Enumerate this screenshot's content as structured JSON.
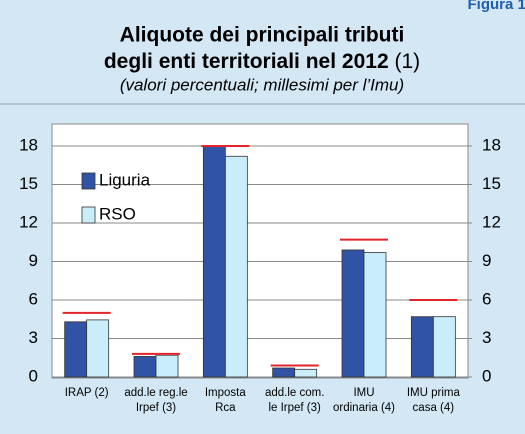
{
  "figure_label": "Figura 1.",
  "chart_data": {
    "type": "bar",
    "title": [
      "Aliquote dei principali tributi",
      "degli enti territoriali nel 2012"
    ],
    "title_note": "(1)",
    "subtitle": "(valori percentuali; millesimi per l’Imu)",
    "categories": [
      [
        "IRAP (2)"
      ],
      [
        "add.le reg.le",
        "Irpef (3)"
      ],
      [
        "Imposta",
        "Rca"
      ],
      [
        "add.le com.",
        "le Irpef (3)"
      ],
      [
        "IMU",
        "ordinaria (4)"
      ],
      [
        "IMU prima",
        "casa (4)"
      ]
    ],
    "series": [
      {
        "name": "Liguria",
        "color": "#3153a6",
        "values": [
          4.3,
          1.6,
          18,
          0.7,
          9.9,
          4.7
        ]
      },
      {
        "name": "RSO",
        "color": "#c9eefa",
        "values": [
          4.45,
          1.7,
          17.2,
          0.6,
          9.7,
          4.7
        ]
      }
    ],
    "max_values": [
      5,
      1.8,
      18,
      0.9,
      10.7,
      6
    ],
    "max_color": "#e3252b",
    "ylim": [
      0,
      18
    ],
    "yticks": [
      0,
      3,
      6,
      9,
      12,
      15,
      18
    ],
    "y2lim": [
      0,
      18
    ],
    "y2ticks": [
      0,
      3,
      6,
      9,
      12,
      15,
      18
    ],
    "grid": true,
    "legend": "upper left"
  }
}
